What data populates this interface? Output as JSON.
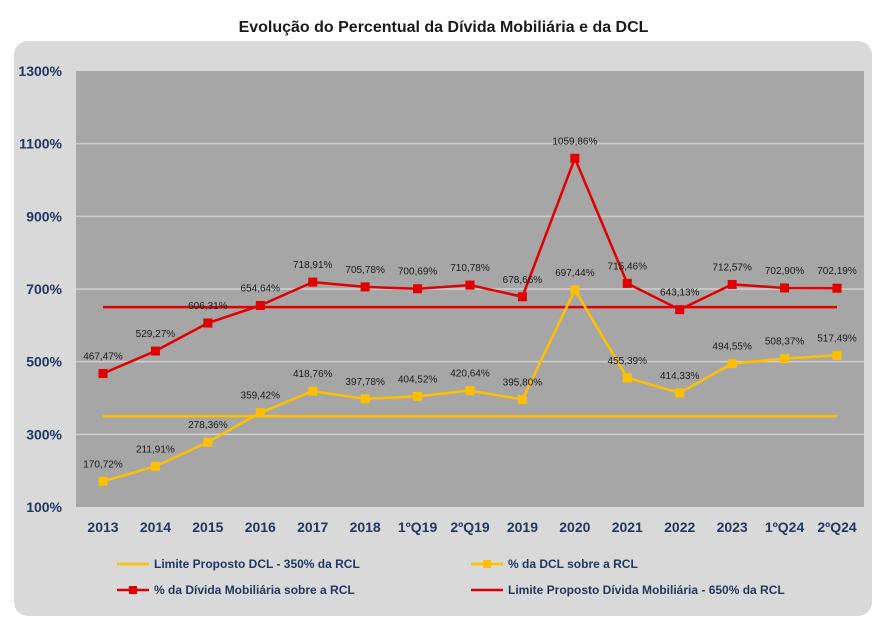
{
  "chart_data": {
    "type": "line",
    "title": "Evolução do Percentual da Dívida Mobiliária e da DCL",
    "categories": [
      "2013",
      "2014",
      "2015",
      "2016",
      "2017",
      "2018",
      "1ºQ19",
      "2ºQ19",
      "2019",
      "2020",
      "2021",
      "2022",
      "2023",
      "1ºQ24",
      "2ºQ24"
    ],
    "ylim": [
      100,
      1300
    ],
    "yticks": [
      100,
      300,
      500,
      700,
      900,
      1100,
      1300
    ],
    "ytick_labels": [
      "100%",
      "300%",
      "500%",
      "700%",
      "900%",
      "1100%",
      "1300%"
    ],
    "grid": true,
    "legend_position": "bottom",
    "series": [
      {
        "name": "Limite Proposto DCL - 350% da RCL",
        "color": "#ffc000",
        "marker": false,
        "values": [
          350,
          350,
          350,
          350,
          350,
          350,
          350,
          350,
          350,
          350,
          350,
          350,
          350,
          350,
          350
        ]
      },
      {
        "name": "% da DCL sobre a RCL",
        "color": "#ffc000",
        "marker": true,
        "values": [
          170.72,
          211.91,
          278.36,
          359.42,
          418.76,
          397.78,
          404.52,
          420.64,
          395.8,
          697.44,
          455.39,
          414.33,
          494.55,
          508.37,
          517.49
        ],
        "labels": [
          "170,72%",
          "211,91%",
          "278,36%",
          "359,42%",
          "418,76%",
          "397,78%",
          "404,52%",
          "420,64%",
          "395,80%",
          "697,44%",
          "455,39%",
          "414,33%",
          "494,55%",
          "508,37%",
          "517,49%"
        ]
      },
      {
        "name": "% da Dívida Mobiliária sobre a RCL",
        "color": "#e00000",
        "marker": true,
        "values": [
          467.47,
          529.27,
          606.31,
          654.64,
          718.91,
          705.78,
          700.69,
          710.78,
          678.66,
          1059.86,
          715.46,
          643.13,
          712.57,
          702.9,
          702.19
        ],
        "labels": [
          "467,47%",
          "529,27%",
          "606,31%",
          "654,64%",
          "718,91%",
          "705,78%",
          "700,69%",
          "710,78%",
          "678,66%",
          "1059,86%",
          "715,46%",
          "643,13%",
          "712,57%",
          "702,90%",
          "702,19%"
        ]
      },
      {
        "name": "Limite Proposto Dívida Mobiliária - 650% da RCL",
        "color": "#e00000",
        "marker": false,
        "values": [
          650,
          650,
          650,
          650,
          650,
          650,
          650,
          650,
          650,
          650,
          650,
          650,
          650,
          650,
          650
        ]
      }
    ],
    "plot_bg": "#a6a6a6",
    "axis_label_color": "#1f3864"
  }
}
